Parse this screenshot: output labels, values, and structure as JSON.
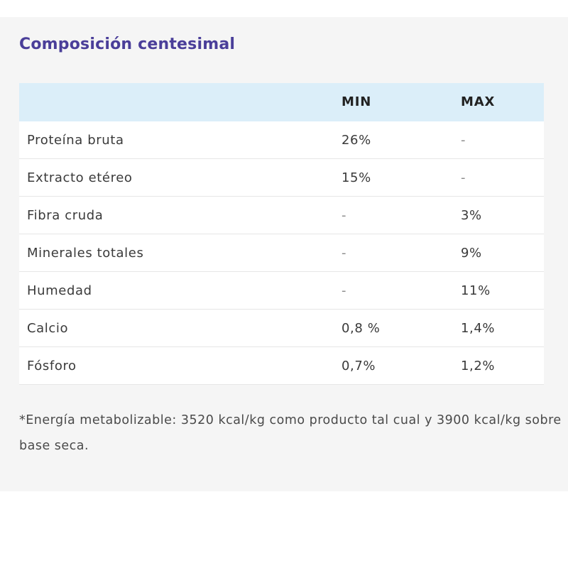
{
  "title": "Composición centesimal",
  "table": {
    "headers": {
      "name": "",
      "min": "MIN",
      "max": "MAX"
    },
    "rows": [
      {
        "name": "Proteína bruta",
        "min": "26%",
        "max": "-"
      },
      {
        "name": "Extracto etéreo",
        "min": "15%",
        "max": "-"
      },
      {
        "name": "Fibra cruda",
        "min": "-",
        "max": "3%"
      },
      {
        "name": "Minerales totales",
        "min": "-",
        "max": "9%"
      },
      {
        "name": "Humedad",
        "min": "-",
        "max": "11%"
      },
      {
        "name": "Calcio",
        "min": "0,8 %",
        "max": "1,4%"
      },
      {
        "name": "Fósforo",
        "min": "0,7%",
        "max": "1,2%"
      }
    ]
  },
  "footnote": "*Energía metabolizable: 3520 kcal/kg como producto tal cual y 3900 kcal/kg sobre base seca.",
  "colors": {
    "title": "#4a3e99",
    "header_bg": "#dbeef9",
    "panel_bg": "#f5f5f5"
  }
}
